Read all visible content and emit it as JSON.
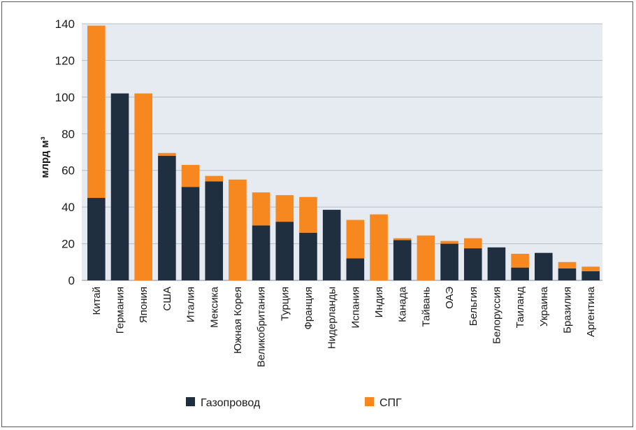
{
  "chart_data": {
    "type": "bar",
    "stacked": true,
    "ylabel": "млрд м³",
    "ylim": [
      0,
      140
    ],
    "yticks": [
      0,
      20,
      40,
      60,
      80,
      100,
      120,
      140
    ],
    "grid": true,
    "legend_position": "bottom",
    "categories": [
      "Китай",
      "Германия",
      "Япония",
      "США",
      "Италия",
      "Мексика",
      "Южная Корея",
      "Великобритания",
      "Турция",
      "Франция",
      "Нидерланды",
      "Испания",
      "Индия",
      "Канада",
      "Тайвань",
      "ОАЭ",
      "Бельгия",
      "Белоруссия",
      "Таиланд",
      "Украина",
      "Бразилия",
      "Аргентина"
    ],
    "series": [
      {
        "name": "Газопровод",
        "color": "#1f2f40",
        "values": [
          45,
          102,
          0,
          68,
          51,
          54,
          0,
          30,
          32,
          26,
          38.5,
          12,
          0,
          22,
          0,
          20,
          17.5,
          18,
          7,
          15,
          6.5,
          5
        ]
      },
      {
        "name": "СПГ",
        "color": "#f7881f",
        "values": [
          94,
          0,
          102,
          1.5,
          12,
          3,
          55,
          18,
          14.5,
          19.5,
          0,
          21,
          36,
          1,
          24.5,
          1.5,
          5.5,
          0,
          7.5,
          0,
          3.5,
          2.5
        ]
      }
    ]
  }
}
